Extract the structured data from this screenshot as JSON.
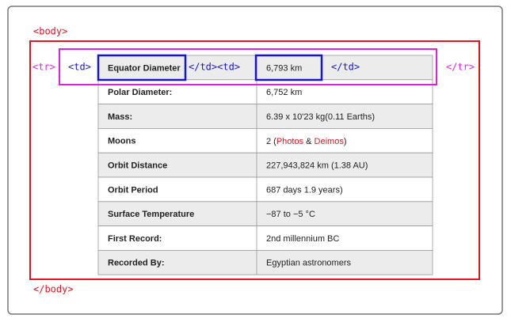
{
  "tags": {
    "body_open": "<body>",
    "body_close": "</body>",
    "tr_open": "<tr>",
    "tr_close": "</tr>",
    "td_open": "<td>",
    "td_close_td_open": "</td><td>",
    "td_close": "</td>"
  },
  "table": {
    "rows": [
      [
        "Equator Diameter",
        "6,793 km"
      ],
      [
        "Polar Diameter:",
        "6,752 km"
      ],
      [
        "Mass:",
        "6.39 x 10'23 kg(0.11 Earths)"
      ],
      [
        "Moons",
        [
          {
            "text": "2 ("
          },
          {
            "text": "Photos",
            "highlight": true
          },
          {
            "text": " & "
          },
          {
            "text": "Deimos",
            "highlight": true
          },
          {
            "text": ")"
          }
        ]
      ],
      [
        "Orbit Distance",
        "227,943,824 km (1.38 AU)"
      ],
      [
        "Orbit Period",
        "687 days 1.9 years)"
      ],
      [
        "Surface Temperature",
        "−87 to −5 °C"
      ],
      [
        "First Record:",
        "2nd millennium BC"
      ],
      [
        "Recorded By:",
        "Egyptian astronomers"
      ]
    ]
  }
}
